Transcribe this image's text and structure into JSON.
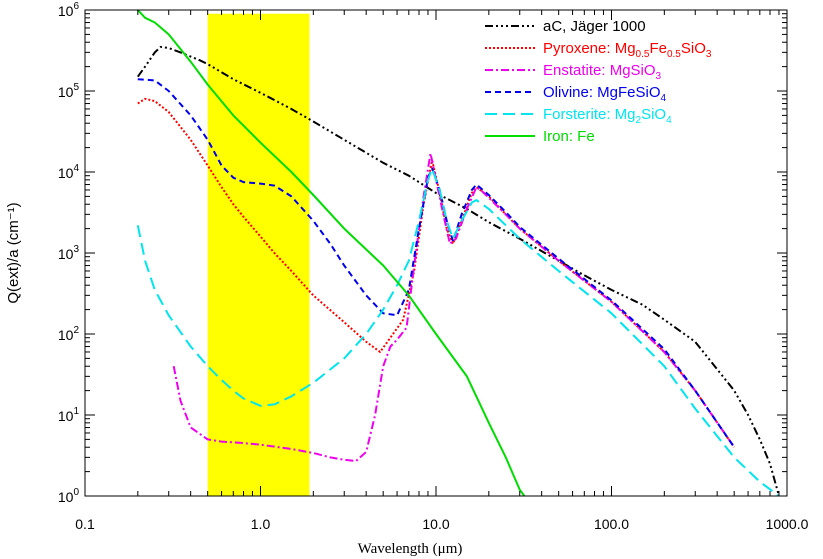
{
  "chart_data": {
    "type": "line",
    "xlabel": "Wavelength (μm)",
    "ylabel": "Q(ext)/a (cm⁻¹)",
    "xscale": "log",
    "yscale": "log",
    "xlim": [
      0.1,
      1000
    ],
    "ylim": [
      1,
      1000000
    ],
    "grid": false,
    "legend_position": "top-right",
    "x_ticks": [
      {
        "value": 0.1,
        "label": "0.1"
      },
      {
        "value": 1,
        "label": "1.0"
      },
      {
        "value": 10,
        "label": "10.0"
      },
      {
        "value": 100,
        "label": "100.0"
      },
      {
        "value": 1000,
        "label": "1000.0"
      }
    ],
    "y_ticks": [
      {
        "value": 1,
        "base": "10",
        "exp": "0"
      },
      {
        "value": 10,
        "base": "10",
        "exp": "1"
      },
      {
        "value": 100,
        "base": "10",
        "exp": "2"
      },
      {
        "value": 1000,
        "base": "10",
        "exp": "3"
      },
      {
        "value": 10000,
        "base": "10",
        "exp": "4"
      },
      {
        "value": 100000,
        "base": "10",
        "exp": "5"
      },
      {
        "value": 1000000,
        "base": "10",
        "exp": "6"
      }
    ],
    "highlight_band": {
      "x_start": 0.5,
      "x_end": 1.9,
      "y_start": 1,
      "y_end": 900000,
      "color": "#ffff00"
    },
    "series": [
      {
        "name_parts": [
          {
            "t": "aC, Jäger 1000"
          }
        ],
        "color": "#000000",
        "dash": "8,3,2,3,2,3,2,3",
        "points": [
          [
            0.2,
            150000
          ],
          [
            0.22,
            200000
          ],
          [
            0.25,
            300000
          ],
          [
            0.27,
            350000
          ],
          [
            0.3,
            340000
          ],
          [
            0.35,
            300000
          ],
          [
            0.45,
            240000
          ],
          [
            0.5,
            215000
          ],
          [
            0.7,
            140000
          ],
          [
            1,
            95000
          ],
          [
            1.5,
            60000
          ],
          [
            2,
            42000
          ],
          [
            3,
            25000
          ],
          [
            5,
            13000
          ],
          [
            7,
            9000
          ],
          [
            10,
            5500
          ],
          [
            15,
            3500
          ],
          [
            20,
            2400
          ],
          [
            30,
            1500
          ],
          [
            50,
            800
          ],
          [
            70,
            530
          ],
          [
            100,
            350
          ],
          [
            150,
            230
          ],
          [
            200,
            150
          ],
          [
            300,
            80
          ],
          [
            500,
            20
          ],
          [
            600,
            10
          ],
          [
            700,
            5
          ],
          [
            800,
            2.5
          ],
          [
            900,
            1
          ]
        ]
      },
      {
        "name_parts": [
          {
            "t": "Pyroxene: Mg"
          },
          {
            "t": "0.5",
            "s": "sub"
          },
          {
            "t": "Fe"
          },
          {
            "t": "0.5",
            "s": "sub"
          },
          {
            "t": "SiO"
          },
          {
            "t": "3",
            "s": "sub"
          }
        ],
        "color": "#ff0000",
        "dash": "2,2",
        "points": [
          [
            0.2,
            70000
          ],
          [
            0.22,
            80000
          ],
          [
            0.25,
            75000
          ],
          [
            0.3,
            55000
          ],
          [
            0.4,
            25000
          ],
          [
            0.5,
            12000
          ],
          [
            0.6,
            6500
          ],
          [
            0.7,
            4000
          ],
          [
            0.8,
            2800
          ],
          [
            1,
            1600
          ],
          [
            1.2,
            1000
          ],
          [
            1.5,
            600
          ],
          [
            2,
            300
          ],
          [
            3,
            140
          ],
          [
            4,
            80
          ],
          [
            4.8,
            60
          ],
          [
            5.5,
            90
          ],
          [
            6.5,
            150
          ],
          [
            7.5,
            600
          ],
          [
            8.5,
            4000
          ],
          [
            9.5,
            14000
          ],
          [
            10.5,
            5500
          ],
          [
            11.5,
            2000
          ],
          [
            12.5,
            1300
          ],
          [
            14,
            2500
          ],
          [
            16,
            5500
          ],
          [
            17,
            6500
          ],
          [
            20,
            5000
          ],
          [
            25,
            3000
          ],
          [
            30,
            2000
          ],
          [
            50,
            800
          ],
          [
            100,
            250
          ],
          [
            200,
            60
          ],
          [
            300,
            20
          ],
          [
            500,
            4
          ]
        ]
      },
      {
        "name_parts": [
          {
            "t": "Enstatite: MgSiO"
          },
          {
            "t": "3",
            "s": "sub"
          }
        ],
        "color": "#ee00ee",
        "dash": "8,3,2,3",
        "points": [
          [
            0.32,
            40
          ],
          [
            0.35,
            15
          ],
          [
            0.4,
            7
          ],
          [
            0.5,
            5
          ],
          [
            0.6,
            4.7
          ],
          [
            0.8,
            4.5
          ],
          [
            1,
            4.3
          ],
          [
            1.5,
            3.8
          ],
          [
            2,
            3.4
          ],
          [
            2.5,
            3
          ],
          [
            3,
            2.8
          ],
          [
            3.5,
            2.7
          ],
          [
            4,
            3.5
          ],
          [
            4.5,
            10
          ],
          [
            5,
            40
          ],
          [
            5.5,
            70
          ],
          [
            6,
            85
          ],
          [
            6.8,
            120
          ],
          [
            7.5,
            700
          ],
          [
            8.5,
            5000
          ],
          [
            9.3,
            17000
          ],
          [
            10,
            8000
          ],
          [
            11,
            3000
          ],
          [
            12,
            1300
          ],
          [
            13,
            1500
          ],
          [
            15,
            3500
          ],
          [
            17,
            6500
          ],
          [
            18,
            6000
          ],
          [
            20,
            4800
          ],
          [
            25,
            3000
          ],
          [
            30,
            2000
          ],
          [
            50,
            800
          ],
          [
            100,
            250
          ],
          [
            200,
            60
          ],
          [
            300,
            20
          ],
          [
            500,
            4
          ]
        ]
      },
      {
        "name_parts": [
          {
            "t": "Olivine: MgFeSiO"
          },
          {
            "t": "4",
            "s": "sub"
          }
        ],
        "color": "#0000ee",
        "dash": "6,4",
        "points": [
          [
            0.2,
            140000
          ],
          [
            0.25,
            135000
          ],
          [
            0.3,
            100000
          ],
          [
            0.4,
            50000
          ],
          [
            0.5,
            25000
          ],
          [
            0.6,
            12000
          ],
          [
            0.7,
            8500
          ],
          [
            0.8,
            7500
          ],
          [
            1,
            7200
          ],
          [
            1.2,
            6800
          ],
          [
            1.5,
            5000
          ],
          [
            2,
            2500
          ],
          [
            2.5,
            1300
          ],
          [
            3,
            700
          ],
          [
            4,
            300
          ],
          [
            5,
            180
          ],
          [
            6,
            170
          ],
          [
            7,
            350
          ],
          [
            8,
            2000
          ],
          [
            9,
            8500
          ],
          [
            9.5,
            11000
          ],
          [
            10.5,
            6000
          ],
          [
            11.5,
            2500
          ],
          [
            12.5,
            1400
          ],
          [
            14,
            3000
          ],
          [
            16,
            6000
          ],
          [
            17,
            7000
          ],
          [
            20,
            5200
          ],
          [
            25,
            3200
          ],
          [
            30,
            2100
          ],
          [
            50,
            850
          ],
          [
            100,
            260
          ],
          [
            200,
            65
          ],
          [
            300,
            20
          ],
          [
            500,
            4
          ]
        ]
      },
      {
        "name_parts": [
          {
            "t": "Forsterite: Mg"
          },
          {
            "t": "2",
            "s": "sub"
          },
          {
            "t": "SiO"
          },
          {
            "t": "4",
            "s": "sub"
          }
        ],
        "color": "#00e5ee",
        "dash": "12,6",
        "points": [
          [
            0.2,
            2200
          ],
          [
            0.22,
            800
          ],
          [
            0.25,
            350
          ],
          [
            0.3,
            170
          ],
          [
            0.4,
            70
          ],
          [
            0.5,
            40
          ],
          [
            0.6,
            27
          ],
          [
            0.7,
            20
          ],
          [
            0.8,
            16
          ],
          [
            1,
            13
          ],
          [
            1.2,
            13.5
          ],
          [
            1.5,
            17
          ],
          [
            2,
            25
          ],
          [
            3,
            50
          ],
          [
            4,
            100
          ],
          [
            5,
            200
          ],
          [
            6,
            400
          ],
          [
            7,
            800
          ],
          [
            8,
            2500
          ],
          [
            9,
            8000
          ],
          [
            9.5,
            11000
          ],
          [
            10.5,
            6000
          ],
          [
            11.5,
            2500
          ],
          [
            12.5,
            1500
          ],
          [
            14,
            2500
          ],
          [
            16,
            4200
          ],
          [
            17,
            4500
          ],
          [
            20,
            3500
          ],
          [
            25,
            2200
          ],
          [
            30,
            1500
          ],
          [
            50,
            600
          ],
          [
            100,
            180
          ],
          [
            200,
            40
          ],
          [
            300,
            12
          ],
          [
            500,
            3
          ],
          [
            700,
            1.5
          ],
          [
            900,
            1
          ]
        ]
      },
      {
        "name_parts": [
          {
            "t": "Iron: Fe"
          }
        ],
        "color": "#00dd00",
        "dash": "",
        "points": [
          [
            0.2,
            1000000
          ],
          [
            0.22,
            800000
          ],
          [
            0.25,
            700000
          ],
          [
            0.3,
            500000
          ],
          [
            0.4,
            230000
          ],
          [
            0.5,
            120000
          ],
          [
            0.7,
            50000
          ],
          [
            1,
            23000
          ],
          [
            1.5,
            10000
          ],
          [
            2,
            5200
          ],
          [
            3,
            2000
          ],
          [
            5,
            700
          ],
          [
            7,
            300
          ],
          [
            10,
            100
          ],
          [
            15,
            30
          ],
          [
            20,
            8
          ],
          [
            25,
            3
          ],
          [
            30,
            1.2
          ],
          [
            33,
            0.9
          ]
        ]
      }
    ]
  }
}
